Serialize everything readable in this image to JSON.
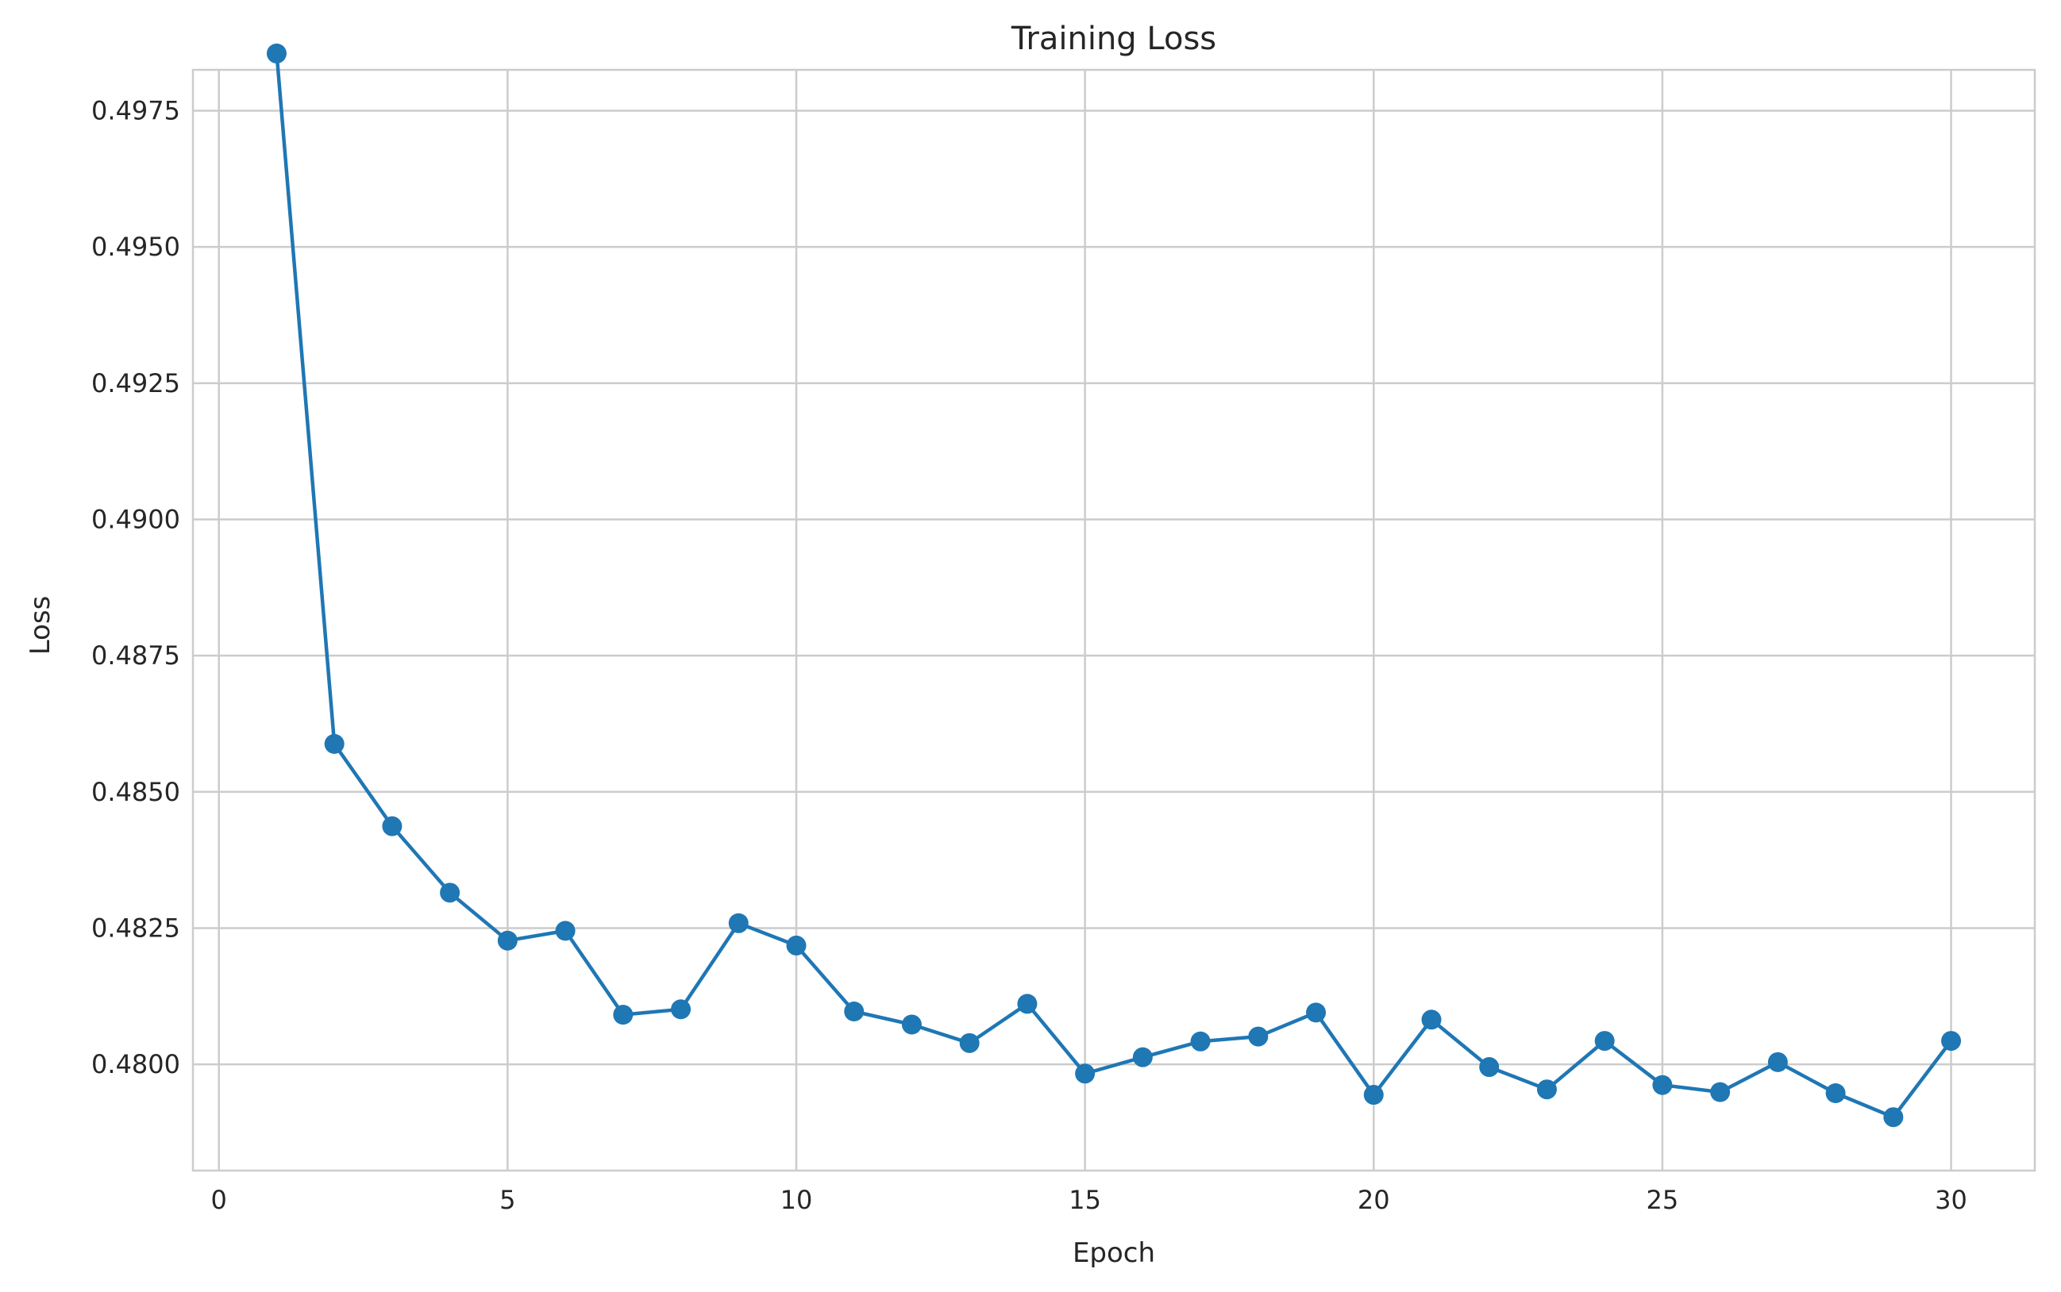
{
  "chart_data": {
    "type": "line",
    "title": "Training Loss",
    "xlabel": "Epoch",
    "ylabel": "Loss",
    "xlim": [
      -0.45,
      31.45
    ],
    "ylim": [
      0.47805,
      0.49825
    ],
    "xticks": [
      0,
      5,
      10,
      15,
      20,
      25,
      30
    ],
    "xtick_labels": [
      "0",
      "5",
      "10",
      "15",
      "20",
      "25",
      "30"
    ],
    "yticks": [
      0.48,
      0.4825,
      0.485,
      0.4875,
      0.49,
      0.4925,
      0.495,
      0.4975
    ],
    "ytick_labels": [
      "0.4800",
      "0.4825",
      "0.4850",
      "0.4875",
      "0.4900",
      "0.4925",
      "0.4950",
      "0.4975"
    ],
    "grid": true,
    "legend": "none",
    "series": [
      {
        "color": "#1f77b4",
        "marker": "circle",
        "x": [
          1,
          2,
          3,
          4,
          5,
          6,
          7,
          8,
          9,
          10,
          11,
          12,
          13,
          14,
          15,
          16,
          17,
          18,
          19,
          20,
          21,
          22,
          23,
          24,
          25,
          26,
          27,
          28,
          29,
          30
        ],
        "values": [
          0.49855,
          0.48588,
          0.48437,
          0.48315,
          0.48227,
          0.48245,
          0.48091,
          0.48101,
          0.48259,
          0.48218,
          0.48097,
          0.48073,
          0.48039,
          0.48111,
          0.47983,
          0.48013,
          0.48042,
          0.48051,
          0.48095,
          0.47944,
          0.48082,
          0.47995,
          0.47954,
          0.48043,
          0.47962,
          0.47949,
          0.48004,
          0.47947,
          0.47903,
          0.48043
        ]
      }
    ]
  }
}
